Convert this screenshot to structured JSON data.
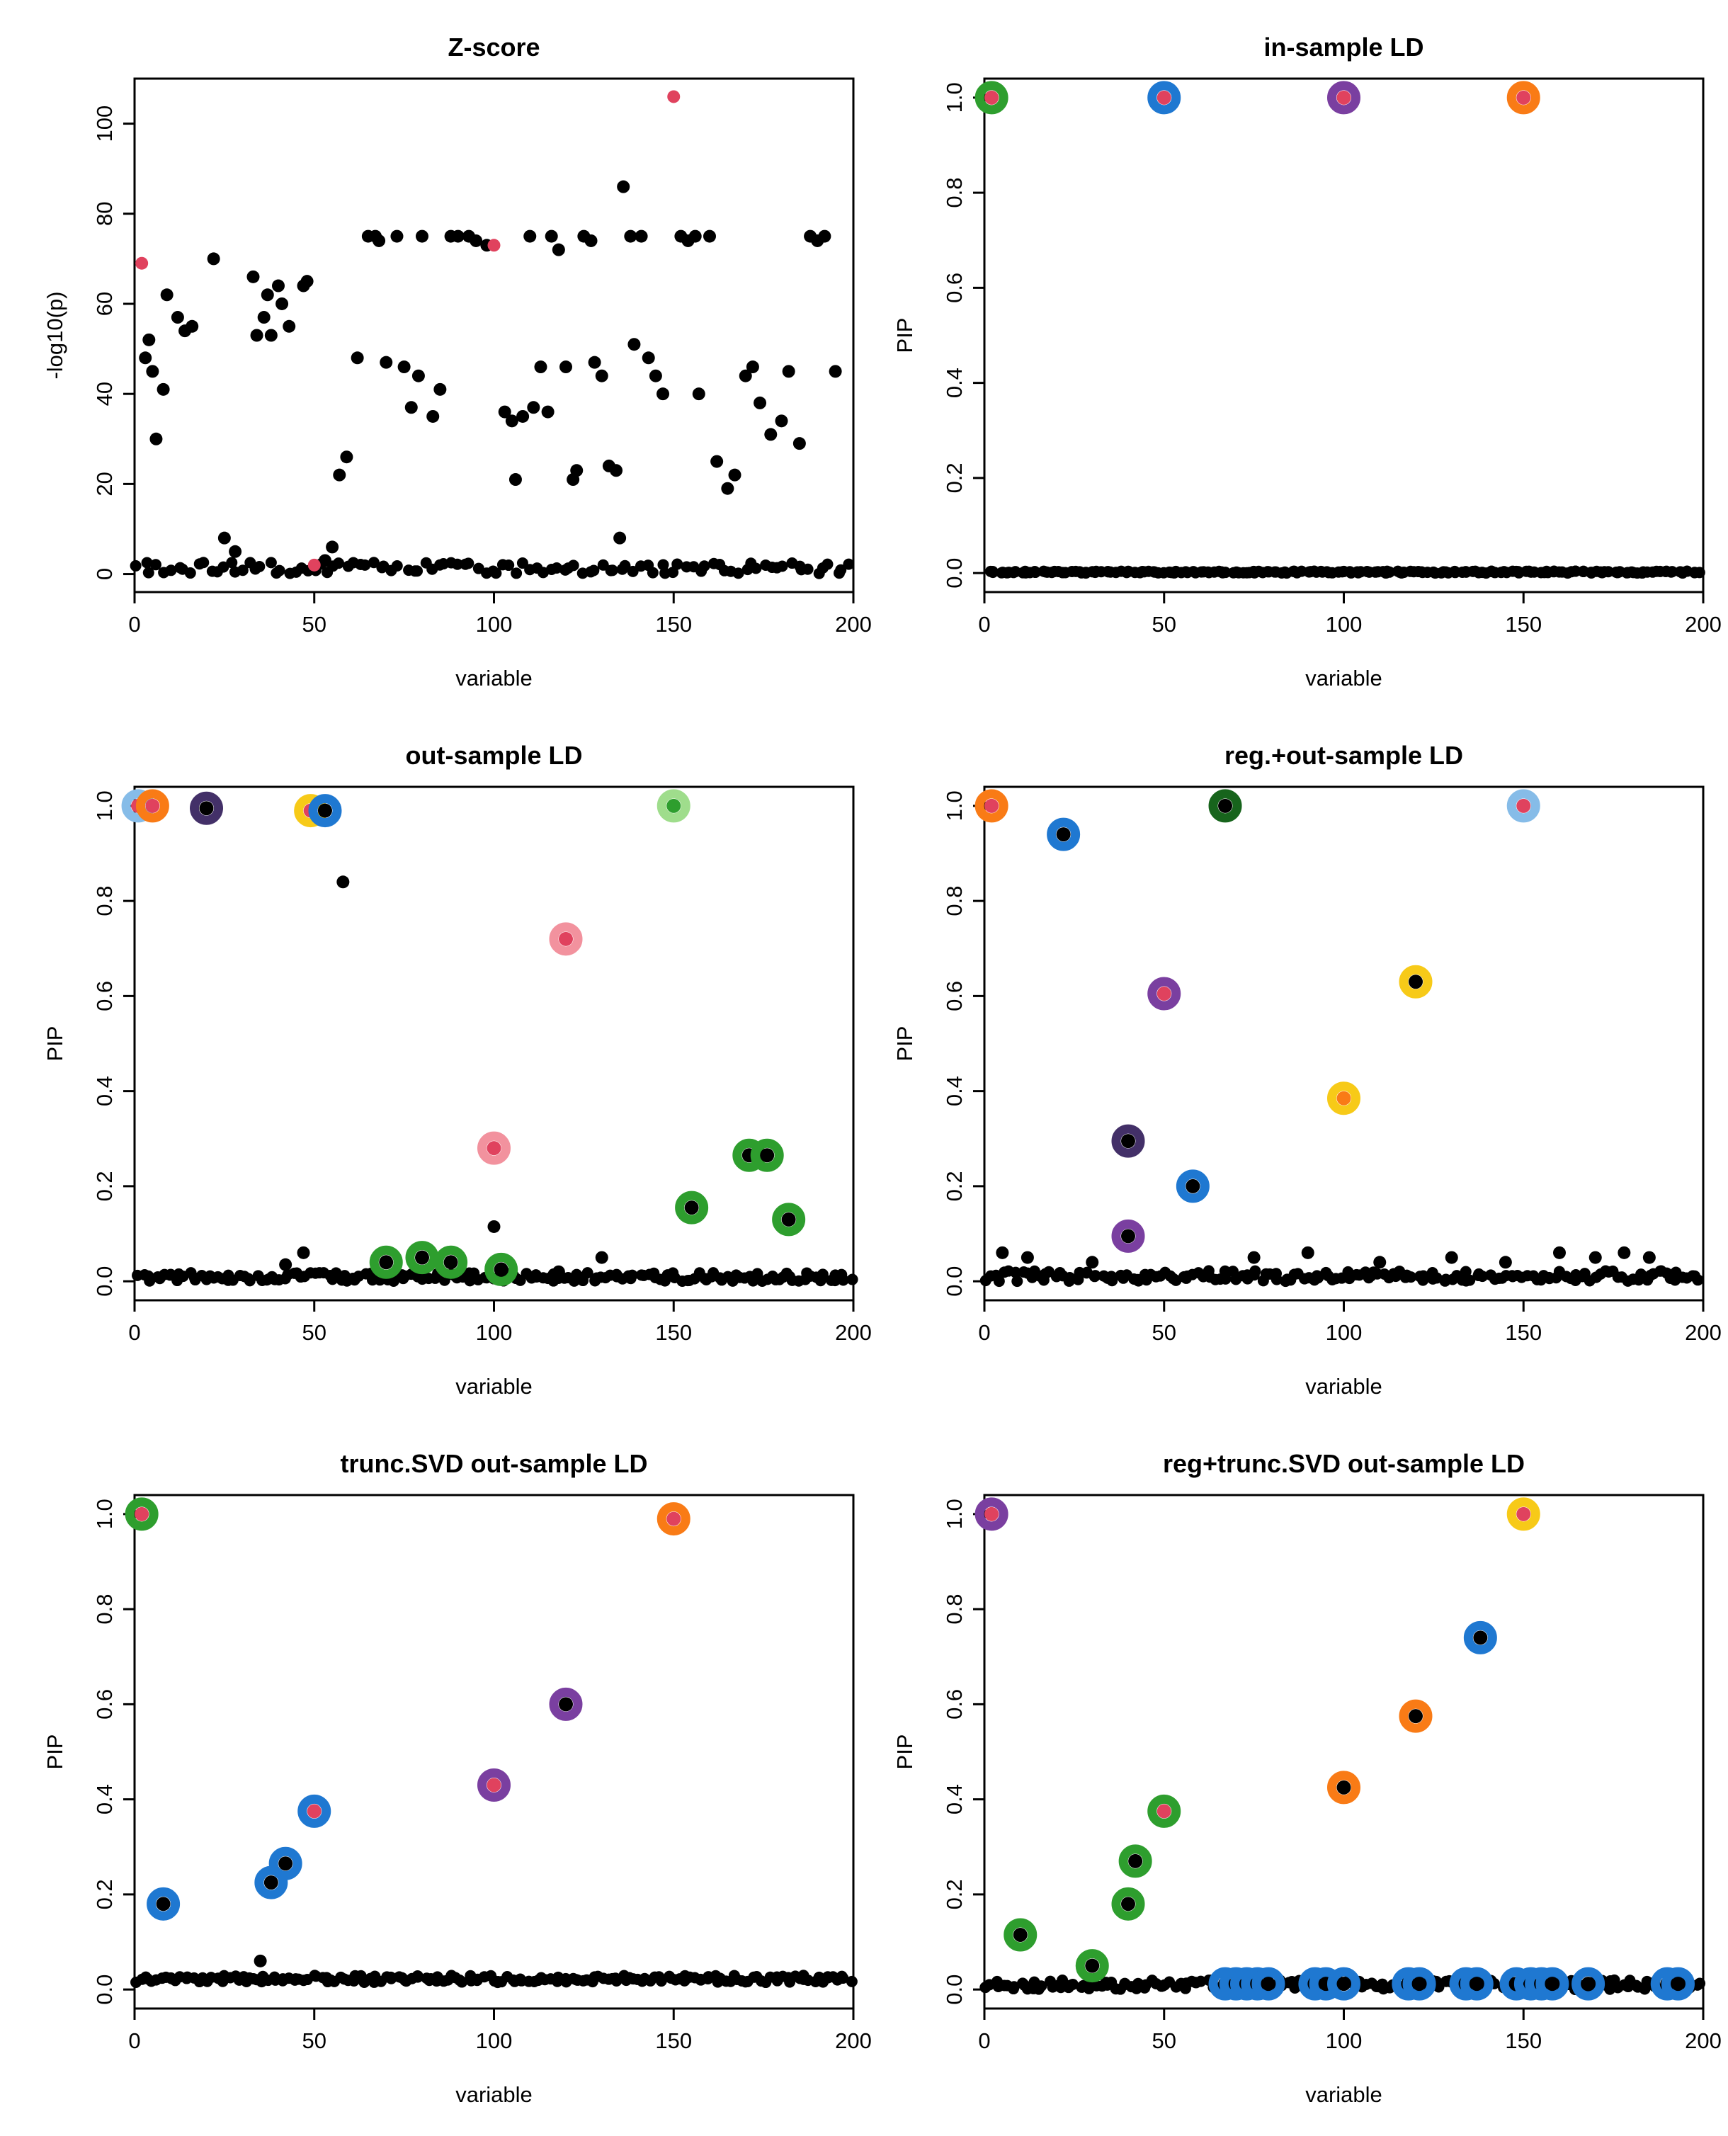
{
  "palette": {
    "black": "#000000",
    "red": "#e0425e",
    "green": "#2e9e2e",
    "darkgreen": "#17641c",
    "lightgreen": "#9fdd8c",
    "blue": "#1f78d1",
    "skyblue": "#86bce8",
    "purple": "#7a3fa0",
    "darkpurple": "#433068",
    "orange": "#f97b16",
    "gold": "#f7ca18",
    "pink": "#f2929e"
  },
  "chart_data": [
    {
      "type": "scatter",
      "title": "Z-score",
      "xlabel": "variable",
      "ylabel": "-log10(p)",
      "xlim": [
        0,
        200
      ],
      "ylim": [
        -4,
        110
      ],
      "xticks": [
        0,
        50,
        100,
        150,
        200
      ],
      "yticks": [
        0,
        20,
        40,
        60,
        80,
        100
      ],
      "ytick_labels": [
        "0",
        "20",
        "40",
        "60",
        "80",
        "100"
      ],
      "baseline": {
        "n": 110,
        "y_min": 0,
        "y_max": 2.6
      },
      "black_points": [
        [
          3,
          48
        ],
        [
          4,
          52
        ],
        [
          5,
          45
        ],
        [
          6,
          30
        ],
        [
          8,
          41
        ],
        [
          9,
          62
        ],
        [
          12,
          57
        ],
        [
          14,
          54
        ],
        [
          16,
          55
        ],
        [
          22,
          70
        ],
        [
          25,
          8
        ],
        [
          28,
          5
        ],
        [
          33,
          66
        ],
        [
          34,
          53
        ],
        [
          36,
          57
        ],
        [
          37,
          62
        ],
        [
          38,
          53
        ],
        [
          40,
          64
        ],
        [
          41,
          60
        ],
        [
          43,
          55
        ],
        [
          47,
          64
        ],
        [
          48,
          65
        ],
        [
          53,
          3
        ],
        [
          55,
          6
        ],
        [
          57,
          22
        ],
        [
          59,
          26
        ],
        [
          62,
          48
        ],
        [
          65,
          75
        ],
        [
          67,
          75
        ],
        [
          68,
          74
        ],
        [
          70,
          47
        ],
        [
          73,
          75
        ],
        [
          75,
          46
        ],
        [
          77,
          37
        ],
        [
          79,
          44
        ],
        [
          80,
          75
        ],
        [
          83,
          35
        ],
        [
          85,
          41
        ],
        [
          88,
          75
        ],
        [
          90,
          75
        ],
        [
          93,
          75
        ],
        [
          95,
          74
        ],
        [
          98,
          73
        ],
        [
          103,
          36
        ],
        [
          105,
          34
        ],
        [
          106,
          21
        ],
        [
          108,
          35
        ],
        [
          110,
          75
        ],
        [
          111,
          37
        ],
        [
          113,
          46
        ],
        [
          115,
          36
        ],
        [
          116,
          75
        ],
        [
          118,
          72
        ],
        [
          120,
          46
        ],
        [
          122,
          21
        ],
        [
          123,
          23
        ],
        [
          125,
          75
        ],
        [
          127,
          74
        ],
        [
          128,
          47
        ],
        [
          130,
          44
        ],
        [
          132,
          24
        ],
        [
          134,
          23
        ],
        [
          135,
          8
        ],
        [
          136,
          86
        ],
        [
          138,
          75
        ],
        [
          139,
          51
        ],
        [
          141,
          75
        ],
        [
          143,
          48
        ],
        [
          145,
          44
        ],
        [
          147,
          40
        ],
        [
          152,
          75
        ],
        [
          154,
          74
        ],
        [
          156,
          75
        ],
        [
          157,
          40
        ],
        [
          160,
          75
        ],
        [
          162,
          25
        ],
        [
          165,
          19
        ],
        [
          167,
          22
        ],
        [
          170,
          44
        ],
        [
          172,
          46
        ],
        [
          174,
          38
        ],
        [
          177,
          31
        ],
        [
          180,
          34
        ],
        [
          182,
          45
        ],
        [
          185,
          29
        ],
        [
          188,
          75
        ],
        [
          190,
          74
        ],
        [
          192,
          75
        ],
        [
          195,
          45
        ]
      ],
      "red_points": [
        [
          2,
          69
        ],
        [
          50,
          2
        ],
        [
          100,
          73
        ],
        [
          150,
          106
        ]
      ],
      "cs_points": []
    },
    {
      "type": "scatter",
      "title": "in-sample LD",
      "xlabel": "variable",
      "ylabel": "PIP",
      "xlim": [
        0,
        200
      ],
      "ylim": [
        -0.04,
        1.04
      ],
      "xticks": [
        0,
        50,
        100,
        150,
        200
      ],
      "yticks": [
        0,
        0.2,
        0.4,
        0.6,
        0.8,
        1.0
      ],
      "ytick_labels": [
        "0.0",
        "0.2",
        "0.4",
        "0.6",
        "0.8",
        "1.0"
      ],
      "baseline": {
        "n": 200,
        "y_min": 0,
        "y_max": 0.004
      },
      "black_points": [],
      "red_points": [],
      "cs_points": [
        {
          "x": 2,
          "y": 1.0,
          "ring": "green",
          "dot": "red"
        },
        {
          "x": 50,
          "y": 1.0,
          "ring": "blue",
          "dot": "red"
        },
        {
          "x": 100,
          "y": 1.0,
          "ring": "purple",
          "dot": "red"
        },
        {
          "x": 150,
          "y": 1.0,
          "ring": "orange",
          "dot": "red"
        }
      ]
    },
    {
      "type": "scatter",
      "title": "out-sample LD",
      "xlabel": "variable",
      "ylabel": "PIP",
      "xlim": [
        0,
        200
      ],
      "ylim": [
        -0.04,
        1.04
      ],
      "xticks": [
        0,
        50,
        100,
        150,
        200
      ],
      "yticks": [
        0,
        0.2,
        0.4,
        0.6,
        0.8,
        1.0
      ],
      "ytick_labels": [
        "0.0",
        "0.2",
        "0.4",
        "0.6",
        "0.8",
        "1.0"
      ],
      "baseline": {
        "n": 170,
        "y_min": 0,
        "y_max": 0.018
      },
      "black_points": [
        [
          58,
          0.84
        ],
        [
          100,
          0.115
        ],
        [
          47,
          0.06
        ],
        [
          42,
          0.035
        ],
        [
          130,
          0.05
        ],
        [
          118,
          0.02
        ]
      ],
      "red_points": [],
      "cs_points": [
        {
          "x": 1,
          "y": 1.0,
          "ring": "skyblue",
          "dot": "red"
        },
        {
          "x": 5,
          "y": 1.0,
          "ring": "orange",
          "dot": "red"
        },
        {
          "x": 20,
          "y": 0.995,
          "ring": "darkpurple",
          "dot": "black"
        },
        {
          "x": 49,
          "y": 0.99,
          "ring": "gold",
          "dot": "red"
        },
        {
          "x": 53,
          "y": 0.99,
          "ring": "blue",
          "dot": "black"
        },
        {
          "x": 150,
          "y": 1.0,
          "ring": "lightgreen",
          "dot": "green"
        },
        {
          "x": 120,
          "y": 0.72,
          "ring": "pink",
          "dot": "red"
        },
        {
          "x": 100,
          "y": 0.28,
          "ring": "pink",
          "dot": "red"
        },
        {
          "x": 70,
          "y": 0.04,
          "ring": "green",
          "dot": "black"
        },
        {
          "x": 80,
          "y": 0.05,
          "ring": "green",
          "dot": "black"
        },
        {
          "x": 88,
          "y": 0.04,
          "ring": "green",
          "dot": "black"
        },
        {
          "x": 102,
          "y": 0.025,
          "ring": "green",
          "dot": "black"
        },
        {
          "x": 155,
          "y": 0.155,
          "ring": "green",
          "dot": "black"
        },
        {
          "x": 171,
          "y": 0.265,
          "ring": "green",
          "dot": "black"
        },
        {
          "x": 176,
          "y": 0.265,
          "ring": "green",
          "dot": "black"
        },
        {
          "x": 182,
          "y": 0.13,
          "ring": "green",
          "dot": "black"
        }
      ]
    },
    {
      "type": "scatter",
      "title": "reg.+out-sample LD",
      "xlabel": "variable",
      "ylabel": "PIP",
      "xlim": [
        0,
        200
      ],
      "ylim": [
        -0.04,
        1.04
      ],
      "xticks": [
        0,
        50,
        100,
        150,
        200
      ],
      "yticks": [
        0,
        0.2,
        0.4,
        0.6,
        0.8,
        1.0
      ],
      "ytick_labels": [
        "0.0",
        "0.2",
        "0.4",
        "0.6",
        "0.8",
        "1.0"
      ],
      "baseline": {
        "n": 170,
        "y_min": 0,
        "y_max": 0.022
      },
      "black_points": [
        [
          5,
          0.06
        ],
        [
          12,
          0.05
        ],
        [
          30,
          0.04
        ],
        [
          75,
          0.05
        ],
        [
          90,
          0.06
        ],
        [
          110,
          0.04
        ],
        [
          130,
          0.05
        ],
        [
          145,
          0.04
        ],
        [
          160,
          0.06
        ],
        [
          170,
          0.05
        ],
        [
          178,
          0.06
        ],
        [
          185,
          0.05
        ]
      ],
      "red_points": [],
      "cs_points": [
        {
          "x": 2,
          "y": 1.0,
          "ring": "orange",
          "dot": "red"
        },
        {
          "x": 67,
          "y": 1.0,
          "ring": "darkgreen",
          "dot": "black"
        },
        {
          "x": 150,
          "y": 1.0,
          "ring": "skyblue",
          "dot": "red"
        },
        {
          "x": 22,
          "y": 0.94,
          "ring": "blue",
          "dot": "black"
        },
        {
          "x": 50,
          "y": 0.605,
          "ring": "purple",
          "dot": "red"
        },
        {
          "x": 120,
          "y": 0.63,
          "ring": "gold",
          "dot": "black"
        },
        {
          "x": 100,
          "y": 0.385,
          "ring": "gold",
          "dot": "orange"
        },
        {
          "x": 40,
          "y": 0.295,
          "ring": "darkpurple",
          "dot": "black"
        },
        {
          "x": 58,
          "y": 0.2,
          "ring": "blue",
          "dot": "black"
        },
        {
          "x": 40,
          "y": 0.095,
          "ring": "purple",
          "dot": "black"
        }
      ]
    },
    {
      "type": "scatter",
      "title": "trunc.SVD out-sample LD",
      "xlabel": "variable",
      "ylabel": "PIP",
      "xlim": [
        0,
        200
      ],
      "ylim": [
        -0.04,
        1.04
      ],
      "xticks": [
        0,
        50,
        100,
        150,
        200
      ],
      "yticks": [
        0,
        0.2,
        0.4,
        0.6,
        0.8,
        1.0
      ],
      "ytick_labels": [
        "0.0",
        "0.2",
        "0.4",
        "0.6",
        "0.8",
        "1.0"
      ],
      "baseline": {
        "n": 180,
        "y_min": 0.015,
        "y_max": 0.03
      },
      "black_points": [
        [
          35,
          0.06
        ]
      ],
      "red_points": [],
      "cs_points": [
        {
          "x": 2,
          "y": 1.0,
          "ring": "green",
          "dot": "red"
        },
        {
          "x": 150,
          "y": 0.99,
          "ring": "orange",
          "dot": "red"
        },
        {
          "x": 120,
          "y": 0.6,
          "ring": "purple",
          "dot": "black"
        },
        {
          "x": 100,
          "y": 0.43,
          "ring": "purple",
          "dot": "red"
        },
        {
          "x": 50,
          "y": 0.375,
          "ring": "blue",
          "dot": "red"
        },
        {
          "x": 42,
          "y": 0.265,
          "ring": "blue",
          "dot": "black"
        },
        {
          "x": 38,
          "y": 0.225,
          "ring": "blue",
          "dot": "black"
        },
        {
          "x": 8,
          "y": 0.18,
          "ring": "blue",
          "dot": "black"
        }
      ]
    },
    {
      "type": "scatter",
      "title": "reg+trunc.SVD out-sample LD",
      "xlabel": "variable",
      "ylabel": "PIP",
      "xlim": [
        0,
        200
      ],
      "ylim": [
        -0.04,
        1.04
      ],
      "xticks": [
        0,
        50,
        100,
        150,
        200
      ],
      "yticks": [
        0,
        0.2,
        0.4,
        0.6,
        0.8,
        1.0
      ],
      "ytick_labels": [
        "0.0",
        "0.2",
        "0.4",
        "0.6",
        "0.8",
        "1.0"
      ],
      "baseline": {
        "n": 180,
        "y_min": 0,
        "y_max": 0.02
      },
      "black_points": [],
      "red_points": [],
      "cs_points": [
        {
          "x": 2,
          "y": 1.0,
          "ring": "purple",
          "dot": "red"
        },
        {
          "x": 150,
          "y": 1.0,
          "ring": "gold",
          "dot": "red"
        },
        {
          "x": 138,
          "y": 0.74,
          "ring": "blue",
          "dot": "black"
        },
        {
          "x": 120,
          "y": 0.575,
          "ring": "orange",
          "dot": "black"
        },
        {
          "x": 100,
          "y": 0.425,
          "ring": "orange",
          "dot": "black"
        },
        {
          "x": 50,
          "y": 0.375,
          "ring": "green",
          "dot": "red"
        },
        {
          "x": 42,
          "y": 0.27,
          "ring": "green",
          "dot": "black"
        },
        {
          "x": 40,
          "y": 0.18,
          "ring": "green",
          "dot": "black"
        },
        {
          "x": 10,
          "y": 0.115,
          "ring": "green",
          "dot": "black"
        },
        {
          "x": 30,
          "y": 0.05,
          "ring": "green",
          "dot": "black"
        },
        {
          "x": 67,
          "y": 0.012,
          "ring": "blue",
          "dot": "black"
        },
        {
          "x": 70,
          "y": 0.012,
          "ring": "blue",
          "dot": "black"
        },
        {
          "x": 73,
          "y": 0.012,
          "ring": "blue",
          "dot": "black"
        },
        {
          "x": 76,
          "y": 0.012,
          "ring": "blue",
          "dot": "black"
        },
        {
          "x": 79,
          "y": 0.012,
          "ring": "blue",
          "dot": "black"
        },
        {
          "x": 92,
          "y": 0.012,
          "ring": "blue",
          "dot": "black"
        },
        {
          "x": 95,
          "y": 0.012,
          "ring": "blue",
          "dot": "black"
        },
        {
          "x": 100,
          "y": 0.012,
          "ring": "blue",
          "dot": "black"
        },
        {
          "x": 118,
          "y": 0.012,
          "ring": "blue",
          "dot": "black"
        },
        {
          "x": 121,
          "y": 0.012,
          "ring": "blue",
          "dot": "black"
        },
        {
          "x": 134,
          "y": 0.012,
          "ring": "blue",
          "dot": "black"
        },
        {
          "x": 137,
          "y": 0.012,
          "ring": "blue",
          "dot": "black"
        },
        {
          "x": 148,
          "y": 0.012,
          "ring": "blue",
          "dot": "black"
        },
        {
          "x": 152,
          "y": 0.012,
          "ring": "blue",
          "dot": "black"
        },
        {
          "x": 155,
          "y": 0.012,
          "ring": "blue",
          "dot": "black"
        },
        {
          "x": 158,
          "y": 0.012,
          "ring": "blue",
          "dot": "black"
        },
        {
          "x": 168,
          "y": 0.012,
          "ring": "blue",
          "dot": "black"
        },
        {
          "x": 190,
          "y": 0.012,
          "ring": "blue",
          "dot": "black"
        },
        {
          "x": 193,
          "y": 0.012,
          "ring": "blue",
          "dot": "black"
        }
      ]
    }
  ]
}
